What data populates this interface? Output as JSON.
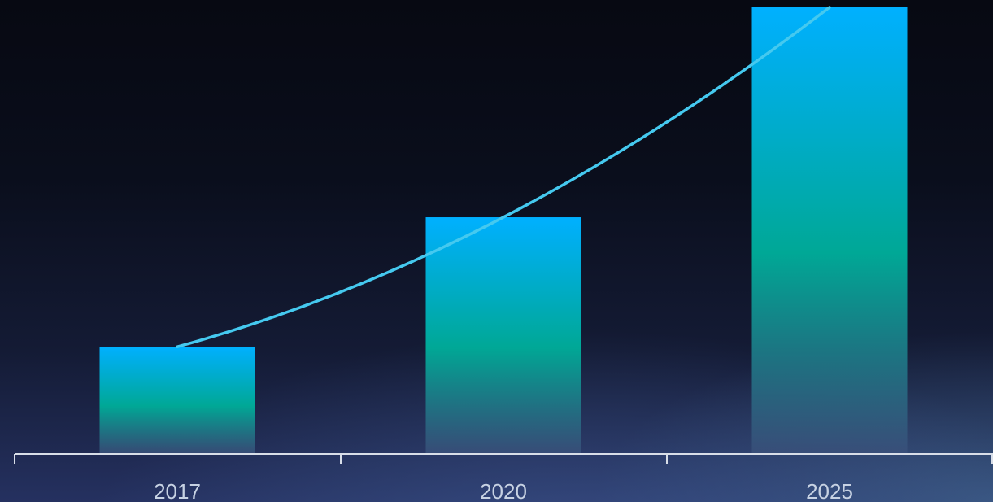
{
  "chart_data": {
    "type": "bar",
    "categories": [
      "2017",
      "2020",
      "2025"
    ],
    "values": [
      24,
      53,
      100
    ],
    "ylim": [
      0,
      100
    ],
    "trend_line": true,
    "grid": false,
    "legend": "none",
    "colors": {
      "bar_top": "#00b0ff",
      "bar_mid": "#00a896",
      "bar_bottom": "#3a4f7a",
      "trend_line": "#45c9ef",
      "axis": "#d8dee8",
      "tick_label": "#c7d2e3"
    }
  }
}
